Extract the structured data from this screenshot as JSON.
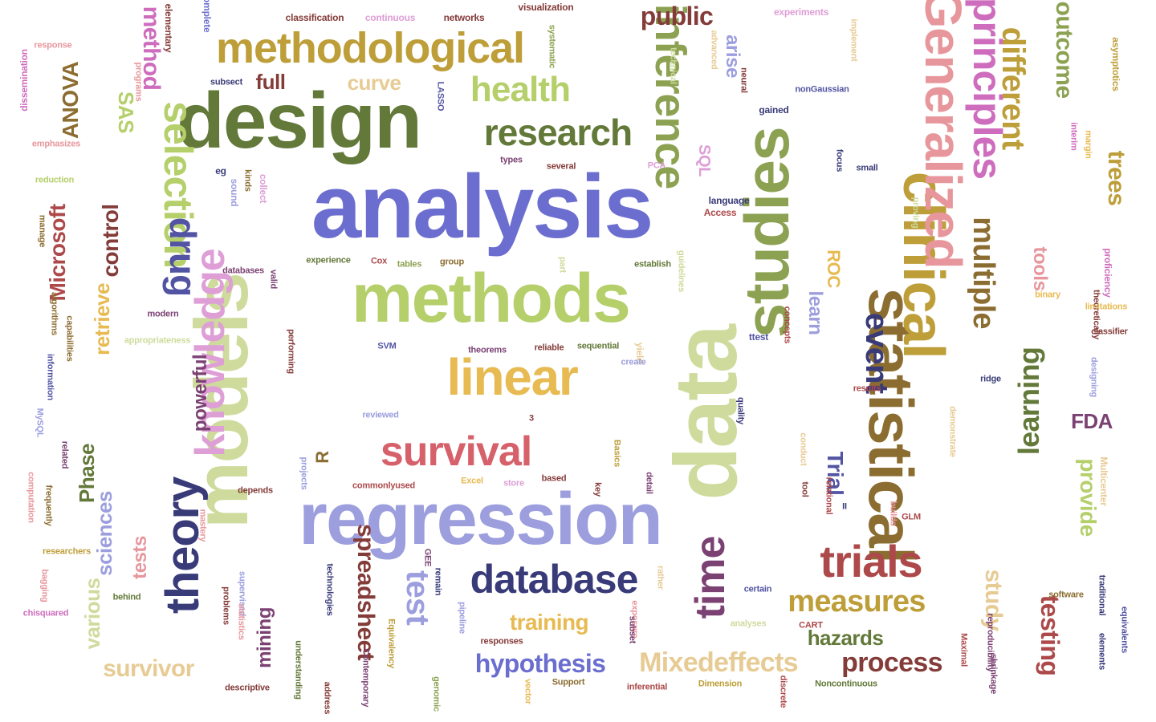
{
  "words": [
    {
      "text": "analysis",
      "color": "#6b6ecf"
    },
    {
      "text": "design",
      "color": "#637939"
    },
    {
      "text": "regression",
      "color": "#9c9ede"
    },
    {
      "text": "data",
      "color": "#cedb9c"
    },
    {
      "text": "methods",
      "color": "#b5cf6b"
    },
    {
      "text": "models",
      "color": "#cedb9c"
    },
    {
      "text": "studies",
      "color": "#8ca252"
    },
    {
      "text": "statistical",
      "color": "#8c6d31"
    },
    {
      "text": "clinical",
      "color": "#bd9e39"
    },
    {
      "text": "Generalized",
      "color": "#e7969c"
    },
    {
      "text": "linear",
      "color": "#e7ba52"
    },
    {
      "text": "methodological",
      "color": "#bd9e39"
    },
    {
      "text": "survival",
      "color": "#d6616b"
    },
    {
      "text": "inference",
      "color": "#8ca252"
    },
    {
      "text": "principles",
      "color": "#ce6dbd"
    },
    {
      "text": "knowledge",
      "color": "#de9ed6"
    },
    {
      "text": "selection",
      "color": "#b5cf6b"
    },
    {
      "text": "theory",
      "color": "#393b79"
    },
    {
      "text": "trials",
      "color": "#ad494a"
    },
    {
      "text": "time",
      "color": "#7b4173"
    },
    {
      "text": "database",
      "color": "#393b79"
    },
    {
      "text": "research",
      "color": "#637939"
    },
    {
      "text": "health",
      "color": "#b5cf6b"
    },
    {
      "text": "drug",
      "color": "#5254a3"
    },
    {
      "text": "different",
      "color": "#bd9e39"
    },
    {
      "text": "multiple",
      "color": "#8c6d31"
    },
    {
      "text": "event",
      "color": "#393b79"
    },
    {
      "text": "learning",
      "color": "#637939"
    },
    {
      "text": "measures",
      "color": "#bd9e39"
    },
    {
      "text": "Mixedeffects",
      "color": "#e7cb94"
    },
    {
      "text": "hypothesis",
      "color": "#6b6ecf"
    },
    {
      "text": "spreadsheet",
      "color": "#843c39"
    },
    {
      "text": "test",
      "color": "#9c9ede"
    },
    {
      "text": "process",
      "color": "#843c39"
    },
    {
      "text": "testing",
      "color": "#ad494a"
    },
    {
      "text": "outcome",
      "color": "#8ca252"
    },
    {
      "text": "trees",
      "color": "#bd9e39"
    },
    {
      "text": "study",
      "color": "#e7cb94"
    },
    {
      "text": "provide",
      "color": "#b5cf6b"
    },
    {
      "text": "public",
      "color": "#843c39"
    },
    {
      "text": "full",
      "color": "#843c39"
    },
    {
      "text": "curve",
      "color": "#e7cb94"
    },
    {
      "text": "method",
      "color": "#ce6dbd"
    },
    {
      "text": "ANOVA",
      "color": "#8c6d31"
    },
    {
      "text": "SAS",
      "color": "#b5cf6b"
    },
    {
      "text": "control",
      "color": "#843c39"
    },
    {
      "text": "Microsoft",
      "color": "#ad494a"
    },
    {
      "text": "retrieve",
      "color": "#e7ba52"
    },
    {
      "text": "powerful",
      "color": "#7b4173"
    },
    {
      "text": "Phase",
      "color": "#637939"
    },
    {
      "text": "sciences",
      "color": "#9c9ede"
    },
    {
      "text": "tests",
      "color": "#e7969c"
    },
    {
      "text": "various",
      "color": "#cedb9c"
    },
    {
      "text": "survivor",
      "color": "#e7cb94"
    },
    {
      "text": "mining",
      "color": "#7b4173"
    },
    {
      "text": "training",
      "color": "#e7ba52"
    },
    {
      "text": "hazards",
      "color": "#637939"
    },
    {
      "text": "Trial",
      "color": "#5254a3"
    },
    {
      "text": "R",
      "color": "#8c6d31"
    },
    {
      "text": "FDA",
      "color": "#7b4173"
    },
    {
      "text": "tools",
      "color": "#e7969c"
    },
    {
      "text": "learn",
      "color": "#9c9ede"
    },
    {
      "text": "ROC",
      "color": "#e7ba52"
    },
    {
      "text": "arise",
      "color": "#9c9ede"
    },
    {
      "text": "SQL",
      "color": "#de9ed6"
    },
    {
      "text": "classification",
      "color": "#843c39"
    },
    {
      "text": "continuous",
      "color": "#de9ed6"
    },
    {
      "text": "networks",
      "color": "#843c39"
    },
    {
      "text": "visualization",
      "color": "#843c39"
    },
    {
      "text": "complete",
      "color": "#6b6ecf"
    },
    {
      "text": "elementary",
      "color": "#843c39"
    },
    {
      "text": "experiments",
      "color": "#de9ed6"
    },
    {
      "text": "response",
      "color": "#e7969c"
    },
    {
      "text": "dissemination",
      "color": "#ce6dbd"
    },
    {
      "text": "programs",
      "color": "#e7969c"
    },
    {
      "text": "subsect",
      "color": "#393b79"
    },
    {
      "text": "LASSO",
      "color": "#5254a3"
    },
    {
      "text": "systematic",
      "color": "#8ca252"
    },
    {
      "text": "advanced",
      "color": "#e7cb94"
    },
    {
      "text": "technical",
      "color": "#cedb9c"
    },
    {
      "text": "neural",
      "color": "#843c39"
    },
    {
      "text": "implement",
      "color": "#e7cb94"
    },
    {
      "text": "nonGaussian",
      "color": "#5254a3"
    },
    {
      "text": "asymptotics",
      "color": "#bd9e39"
    },
    {
      "text": "interim",
      "color": "#ce6dbd"
    },
    {
      "text": "margin",
      "color": "#e7ba52"
    },
    {
      "text": "gained",
      "color": "#393b79"
    },
    {
      "text": "emphasizes",
      "color": "#e7969c"
    },
    {
      "text": "reduction",
      "color": "#b5cf6b"
    },
    {
      "text": "eg",
      "color": "#393b79"
    },
    {
      "text": "kinds",
      "color": "#8c6d31"
    },
    {
      "text": "types",
      "color": "#7b4173"
    },
    {
      "text": "several",
      "color": "#843c39"
    },
    {
      "text": "PCA",
      "color": "#de9ed6"
    },
    {
      "text": "focus",
      "color": "#393b79"
    },
    {
      "text": "small",
      "color": "#393b79"
    },
    {
      "text": "proving",
      "color": "#cedb9c"
    },
    {
      "text": "language",
      "color": "#393b79"
    },
    {
      "text": "Access",
      "color": "#ad494a"
    },
    {
      "text": "sound",
      "color": "#9c9ede"
    },
    {
      "text": "collect",
      "color": "#de9ed6"
    },
    {
      "text": "manage",
      "color": "#8c6d31"
    },
    {
      "text": "databases",
      "color": "#7b4173"
    },
    {
      "text": "valid",
      "color": "#7b4173"
    },
    {
      "text": "experience",
      "color": "#637939"
    },
    {
      "text": "Cox",
      "color": "#ad494a"
    },
    {
      "text": "group",
      "color": "#8c6d31"
    },
    {
      "text": "tables",
      "color": "#8ca252"
    },
    {
      "text": "part",
      "color": "#cedb9c"
    },
    {
      "text": "establish",
      "color": "#637939"
    },
    {
      "text": "guidelines",
      "color": "#cedb9c"
    },
    {
      "text": "proficiency",
      "color": "#ce6dbd"
    },
    {
      "text": "theoretically",
      "color": "#843c39"
    },
    {
      "text": "binary",
      "color": "#e7ba52"
    },
    {
      "text": "limitations",
      "color": "#e7ba52"
    },
    {
      "text": "classifier",
      "color": "#843c39"
    },
    {
      "text": "algorithms",
      "color": "#8c6d31"
    },
    {
      "text": "capabilities",
      "color": "#8c6d31"
    },
    {
      "text": "modern",
      "color": "#7b4173"
    },
    {
      "text": "appropriateness",
      "color": "#cedb9c"
    },
    {
      "text": "information",
      "color": "#5254a3"
    },
    {
      "text": "performing",
      "color": "#843c39"
    },
    {
      "text": "SVM",
      "color": "#5254a3"
    },
    {
      "text": "theorems",
      "color": "#7b4173"
    },
    {
      "text": "reliable",
      "color": "#843c39"
    },
    {
      "text": "sequential",
      "color": "#637939"
    },
    {
      "text": "yield",
      "color": "#e7cb94"
    },
    {
      "text": "create",
      "color": "#9c9ede"
    },
    {
      "text": "concepts",
      "color": "#ad494a"
    },
    {
      "text": "ttest",
      "color": "#5254a3"
    },
    {
      "text": "quality",
      "color": "#393b79"
    },
    {
      "text": "results",
      "color": "#ad494a"
    },
    {
      "text": "ridge",
      "color": "#393b79"
    },
    {
      "text": "designing",
      "color": "#9c9ede"
    },
    {
      "text": "reviewed",
      "color": "#9c9ede"
    },
    {
      "text": "3",
      "color": "#843c39"
    },
    {
      "text": "demonstrate",
      "color": "#e7cb94"
    },
    {
      "text": "MySQL",
      "color": "#9c9ede"
    },
    {
      "text": "related",
      "color": "#7b4173"
    },
    {
      "text": "computation",
      "color": "#e7969c"
    },
    {
      "text": "frequently",
      "color": "#8c6d31"
    },
    {
      "text": "researchers",
      "color": "#bd9e39"
    },
    {
      "text": "conduct",
      "color": "#e7cb94"
    },
    {
      "text": "projects",
      "color": "#9c9ede"
    },
    {
      "text": "based",
      "color": "#843c39"
    },
    {
      "text": "key",
      "color": "#843c39"
    },
    {
      "text": "Basics",
      "color": "#bd9e39"
    },
    {
      "text": "Excel",
      "color": "#e7ba52"
    },
    {
      "text": "store",
      "color": "#de9ed6"
    },
    {
      "text": "commonlyused",
      "color": "#ad494a"
    },
    {
      "text": "depends",
      "color": "#843c39"
    },
    {
      "text": "detail",
      "color": "#7b4173"
    },
    {
      "text": "tool",
      "color": "#843c39"
    },
    {
      "text": "relational",
      "color": "#ad494a"
    },
    {
      "text": "II",
      "color": "#393b79"
    },
    {
      "text": "builds",
      "color": "#e7969c"
    },
    {
      "text": "GLM",
      "color": "#ad494a"
    },
    {
      "text": "Multicenter",
      "color": "#e7cb94"
    },
    {
      "text": "mastery",
      "color": "#e7969c"
    },
    {
      "text": "bagging",
      "color": "#e7969c"
    },
    {
      "text": "chisquared",
      "color": "#ce6dbd"
    },
    {
      "text": "behind",
      "color": "#637939"
    },
    {
      "text": "GEE",
      "color": "#7b4173"
    },
    {
      "text": "technologies",
      "color": "#393b79"
    },
    {
      "text": "remain",
      "color": "#393b79"
    },
    {
      "text": "supervised",
      "color": "#9c9ede"
    },
    {
      "text": "problems",
      "color": "#843c39"
    },
    {
      "text": "statistics",
      "color": "#e7969c"
    },
    {
      "text": "certain",
      "color": "#5254a3"
    },
    {
      "text": "rather",
      "color": "#e7cb94"
    },
    {
      "text": "exposure",
      "color": "#e7969c"
    },
    {
      "text": "analyses",
      "color": "#cedb9c"
    },
    {
      "text": "CART",
      "color": "#ad494a"
    },
    {
      "text": "reproducibility",
      "color": "#7b4173"
    },
    {
      "text": "Maximal",
      "color": "#ad494a"
    },
    {
      "text": "software",
      "color": "#8c6d31"
    },
    {
      "text": "traditional",
      "color": "#393b79"
    },
    {
      "text": "equivalents",
      "color": "#5254a3"
    },
    {
      "text": "elements",
      "color": "#393b79"
    },
    {
      "text": "shrinkage",
      "color": "#7b4173"
    },
    {
      "text": "responses",
      "color": "#843c39"
    },
    {
      "text": "subset",
      "color": "#7b4173"
    },
    {
      "text": "pipeline",
      "color": "#9c9ede"
    },
    {
      "text": "Equivalency",
      "color": "#bd9e39"
    },
    {
      "text": "understanding",
      "color": "#637939"
    },
    {
      "text": "Contemporary",
      "color": "#7b4173"
    },
    {
      "text": "address",
      "color": "#843c39"
    },
    {
      "text": "genomic",
      "color": "#8ca252"
    },
    {
      "text": "vector",
      "color": "#e7ba52"
    },
    {
      "text": "Support",
      "color": "#8c6d31"
    },
    {
      "text": "inferential",
      "color": "#ad494a"
    },
    {
      "text": "Dimension",
      "color": "#bd9e39"
    },
    {
      "text": "discrete",
      "color": "#ad494a"
    },
    {
      "text": "Noncontinuous",
      "color": "#637939"
    },
    {
      "text": "descriptive",
      "color": "#843c39"
    }
  ]
}
